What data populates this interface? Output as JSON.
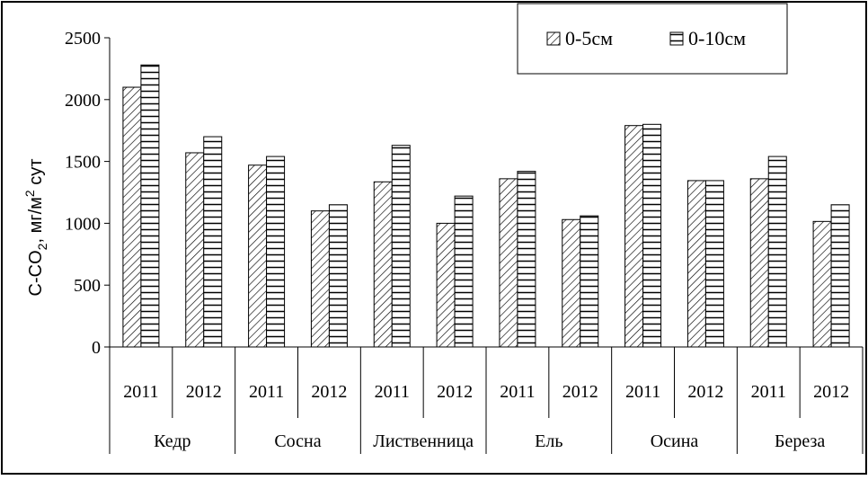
{
  "chart_data": {
    "type": "bar",
    "ylabel": {
      "main": "C-CO",
      "sub": "2",
      "rest": ", мг/м",
      "sup": "2",
      "unit": " сут"
    },
    "ylim": [
      0,
      2500
    ],
    "yticks": [
      "0",
      "500",
      "1000",
      "1500",
      "2000",
      "2500"
    ],
    "legend_placement": "top-right",
    "groups": [
      "Кедр",
      "Сосна",
      "Лиственница",
      "Ель",
      "Осина",
      "Береза"
    ],
    "categories": [
      "2011",
      "2012",
      "2011",
      "2012",
      "2011",
      "2012",
      "2011",
      "2012",
      "2011",
      "2012",
      "2011",
      "2012"
    ],
    "series": [
      {
        "name": "0-5см",
        "pattern": "diagonal-hatch",
        "values": [
          2100,
          1570,
          1470,
          1100,
          1335,
          1000,
          1360,
          1030,
          1790,
          1345,
          1360,
          1015
        ]
      },
      {
        "name": "0-10см",
        "pattern": "horizontal-stripes",
        "values": [
          2280,
          1700,
          1540,
          1150,
          1630,
          1220,
          1420,
          1060,
          1800,
          1345,
          1540,
          1150
        ]
      }
    ]
  }
}
